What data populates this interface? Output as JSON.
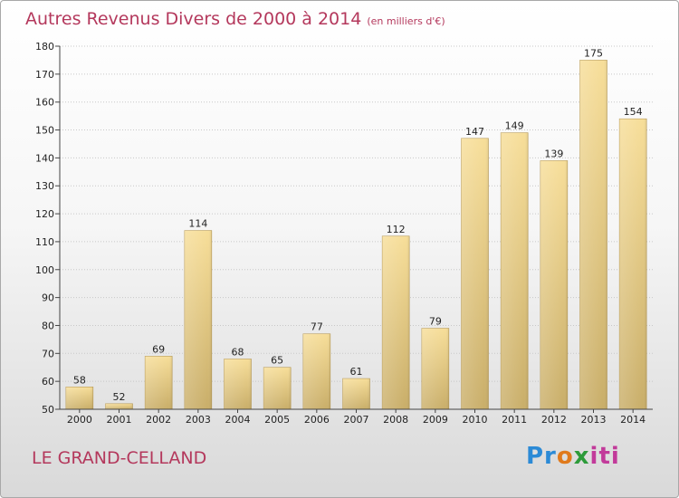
{
  "title": "Autres Revenus Divers de 2000 à 2014",
  "subtitle": "(en milliers d'€)",
  "location": "LE GRAND-CELLAND",
  "logo": "Proxiti",
  "colors": {
    "title": "#b4385c",
    "bar_light": "#f6dd98",
    "bar_dark": "#c8ad68",
    "axis": "#444444",
    "grid": "#c8c8c8"
  },
  "chart_data": {
    "type": "bar",
    "title": "Autres Revenus Divers de 2000 à 2014",
    "subtitle": "(en milliers d'€)",
    "xlabel": "",
    "ylabel": "",
    "categories": [
      "2000",
      "2001",
      "2002",
      "2003",
      "2004",
      "2005",
      "2006",
      "2007",
      "2008",
      "2009",
      "2010",
      "2011",
      "2012",
      "2013",
      "2014"
    ],
    "values": [
      58,
      52,
      69,
      114,
      68,
      65,
      77,
      61,
      112,
      79,
      147,
      149,
      139,
      175,
      154
    ],
    "ylim": [
      50,
      180
    ],
    "yticks": [
      50,
      60,
      70,
      80,
      90,
      100,
      110,
      120,
      130,
      140,
      150,
      160,
      170,
      180
    ],
    "grid": true,
    "data_labels": true
  }
}
